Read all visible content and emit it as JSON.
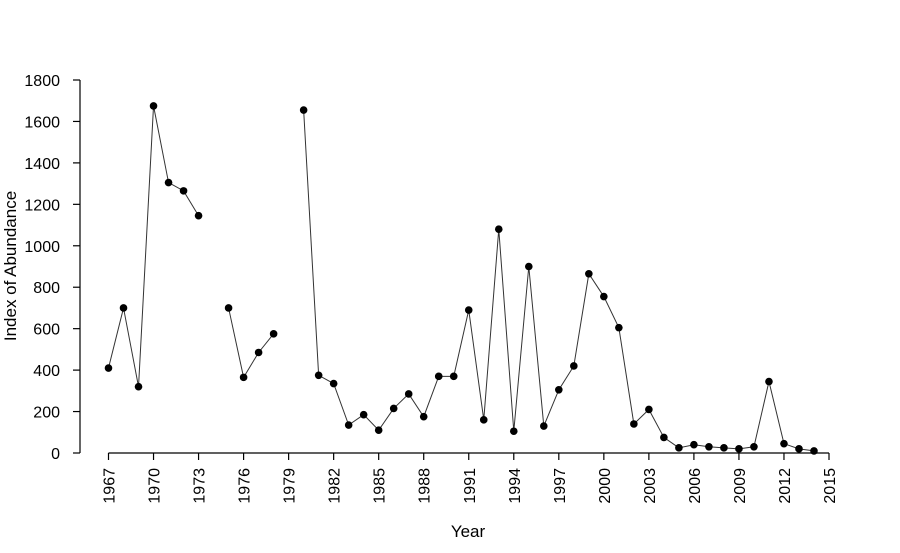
{
  "chart_data": {
    "type": "line",
    "title": "",
    "xlabel": "Year",
    "ylabel": "Index of Abundance",
    "xlim": [
      1967,
      2015
    ],
    "ylim": [
      0,
      1800
    ],
    "x_ticks": [
      1967,
      1970,
      1973,
      1976,
      1979,
      1982,
      1985,
      1988,
      1991,
      1994,
      1997,
      2000,
      2003,
      2006,
      2009,
      2012,
      2015
    ],
    "y_ticks": [
      0,
      200,
      400,
      600,
      800,
      1000,
      1200,
      1400,
      1600,
      1800
    ],
    "grid": false,
    "legend": "none",
    "series": [
      {
        "x": [
          1967,
          1968,
          1969,
          1970,
          1971,
          1972,
          1973,
          1974,
          1975,
          1976,
          1977,
          1978,
          1979,
          1980,
          1981,
          1982,
          1983,
          1984,
          1985,
          1986,
          1987,
          1988,
          1989,
          1990,
          1991,
          1992,
          1993,
          1994,
          1995,
          1996,
          1997,
          1998,
          1999,
          2000,
          2001,
          2002,
          2003,
          2004,
          2005,
          2006,
          2007,
          2008,
          2009,
          2010,
          2011,
          2012,
          2013,
          2014
        ],
        "values": [
          410,
          700,
          320,
          1675,
          1305,
          1265,
          1145,
          null,
          700,
          365,
          485,
          575,
          null,
          1655,
          375,
          335,
          135,
          185,
          110,
          215,
          285,
          175,
          370,
          370,
          690,
          160,
          1080,
          105,
          900,
          130,
          305,
          420,
          865,
          755,
          605,
          140,
          210,
          75,
          25,
          40,
          30,
          25,
          20,
          30,
          345,
          45,
          20,
          10
        ]
      }
    ]
  }
}
